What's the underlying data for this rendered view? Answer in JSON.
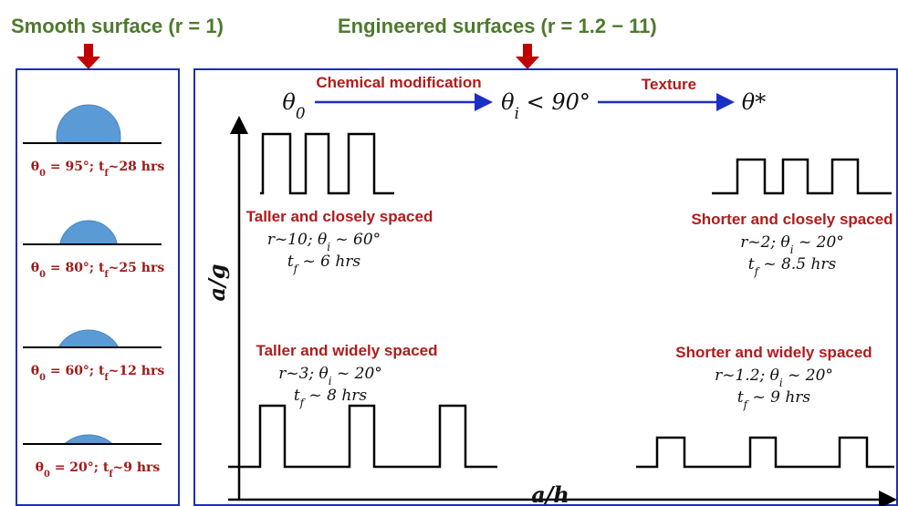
{
  "header": {
    "smooth": "Smooth surface (r = 1)",
    "engineered": "Engineered surfaces (r = 1.2 − 11)"
  },
  "droplets": [
    {
      "label": [
        {
          "text": "θ"
        },
        {
          "sub": "0"
        },
        {
          "text": " = 95°;  t"
        },
        {
          "sub": "f"
        },
        {
          "text": "~28 hrs"
        }
      ]
    },
    {
      "label": [
        {
          "text": "θ"
        },
        {
          "sub": "0"
        },
        {
          "text": " = 80°;  t"
        },
        {
          "sub": "f"
        },
        {
          "text": "~25 hrs"
        }
      ]
    },
    {
      "label": [
        {
          "text": "θ"
        },
        {
          "sub": "0"
        },
        {
          "text": " = 60°;  t"
        },
        {
          "sub": "f"
        },
        {
          "text": "~12 hrs"
        }
      ]
    },
    {
      "label": [
        {
          "text": "θ"
        },
        {
          "sub": "0"
        },
        {
          "text": " = 20°;  t"
        },
        {
          "sub": "f"
        },
        {
          "text": "~9 hrs"
        }
      ]
    }
  ],
  "flow": {
    "start": [
      {
        "text": "θ"
      },
      {
        "sub": "0"
      }
    ],
    "step1": "Chemical modification",
    "middle": [
      {
        "text": "θ"
      },
      {
        "sub": "i"
      },
      {
        "text": " < 90°"
      }
    ],
    "step2": "Texture",
    "end": [
      {
        "text": "θ*"
      }
    ]
  },
  "axes": {
    "y": "a/g",
    "x": "a/h"
  },
  "quadrants": [
    {
      "title": "Taller and closely spaced",
      "line1": [
        {
          "text": "r~10;  θ"
        },
        {
          "sub": "i"
        },
        {
          "text": " ~ 60°"
        }
      ],
      "line2": [
        {
          "text": "t"
        },
        {
          "sub": "f"
        },
        {
          "text": " ~ 6 hrs"
        }
      ]
    },
    {
      "title": "Shorter and closely spaced",
      "line1": [
        {
          "text": "r~2;  θ"
        },
        {
          "sub": "i"
        },
        {
          "text": " ~ 20°"
        }
      ],
      "line2": [
        {
          "text": "t"
        },
        {
          "sub": "f"
        },
        {
          "text": " ~ 8.5 hrs"
        }
      ]
    },
    {
      "title": "Taller and widely spaced",
      "line1": [
        {
          "text": "r~3;  θ"
        },
        {
          "sub": "i"
        },
        {
          "text": " ~ 20°"
        }
      ],
      "line2": [
        {
          "text": "t"
        },
        {
          "sub": "f"
        },
        {
          "text": " ~ 8 hrs"
        }
      ]
    },
    {
      "title": "Shorter and widely spaced",
      "line1": [
        {
          "text": "r~1.2;  θ"
        },
        {
          "sub": "i"
        },
        {
          "text": " ~ 20°"
        }
      ],
      "line2": [
        {
          "text": "t"
        },
        {
          "sub": "f"
        },
        {
          "text": " ~ 9 hrs"
        }
      ]
    }
  ]
}
